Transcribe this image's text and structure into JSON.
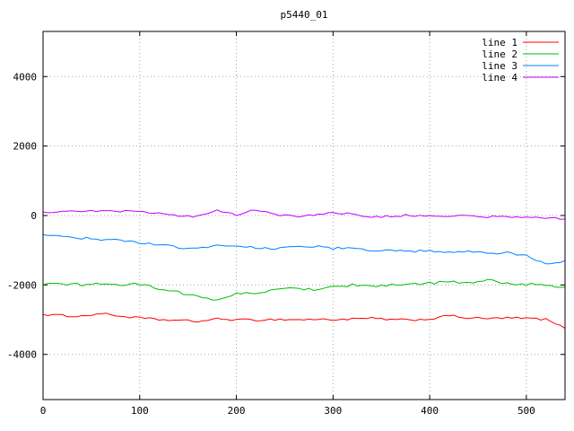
{
  "chart_data": {
    "type": "line",
    "title": "p5440_01",
    "xlabel": "",
    "ylabel": "",
    "xlim": [
      0,
      540
    ],
    "ylim": [
      -5300,
      5300
    ],
    "xticks": [
      0,
      100,
      200,
      300,
      400,
      500
    ],
    "yticks": [
      -4000,
      -2000,
      0,
      2000,
      4000
    ],
    "grid": true,
    "grid_style": "dotted",
    "legend_position": "top-right-inside",
    "colors": {
      "background": "#ffffff",
      "border": "#000000",
      "grid": "#a8a8a8",
      "text": "#000000"
    },
    "x": [
      0,
      20,
      40,
      60,
      80,
      100,
      120,
      140,
      160,
      180,
      200,
      220,
      240,
      260,
      280,
      300,
      320,
      340,
      360,
      380,
      400,
      420,
      440,
      460,
      480,
      500,
      520,
      540
    ],
    "series": [
      {
        "name": "line 1",
        "color": "#ff0000",
        "noise": 30,
        "values": [
          -2850,
          -2880,
          -2900,
          -2820,
          -2900,
          -2950,
          -3000,
          -3020,
          -3050,
          -2980,
          -3000,
          -3010,
          -2990,
          -3000,
          -2990,
          -3000,
          -2980,
          -2960,
          -3000,
          -3010,
          -2980,
          -2880,
          -2950,
          -2970,
          -2950,
          -2960,
          -2990,
          -3250
        ]
      },
      {
        "name": "line 2",
        "color": "#00c000",
        "noise": 40,
        "values": [
          -2000,
          -1960,
          -2000,
          -1950,
          -2000,
          -1980,
          -2100,
          -2200,
          -2350,
          -2430,
          -2250,
          -2230,
          -2150,
          -2100,
          -2120,
          -2050,
          -2000,
          -2050,
          -1980,
          -2000,
          -1950,
          -1900,
          -1950,
          -1870,
          -1950,
          -1980,
          -2000,
          -2060
        ]
      },
      {
        "name": "line 3",
        "color": "#0080ff",
        "noise": 35,
        "values": [
          -550,
          -620,
          -650,
          -700,
          -720,
          -780,
          -850,
          -920,
          -950,
          -860,
          -880,
          -920,
          -950,
          -900,
          -880,
          -950,
          -920,
          -1000,
          -980,
          -1050,
          -1000,
          -1080,
          -1050,
          -1100,
          -1080,
          -1150,
          -1380,
          -1300
        ]
      },
      {
        "name": "line 4",
        "color": "#c000ff",
        "noise": 30,
        "values": [
          100,
          120,
          140,
          110,
          130,
          100,
          50,
          0,
          -30,
          140,
          30,
          170,
          20,
          -20,
          0,
          90,
          40,
          -60,
          -20,
          10,
          -10,
          -30,
          0,
          -40,
          -20,
          -50,
          -80,
          -100
        ]
      }
    ]
  }
}
